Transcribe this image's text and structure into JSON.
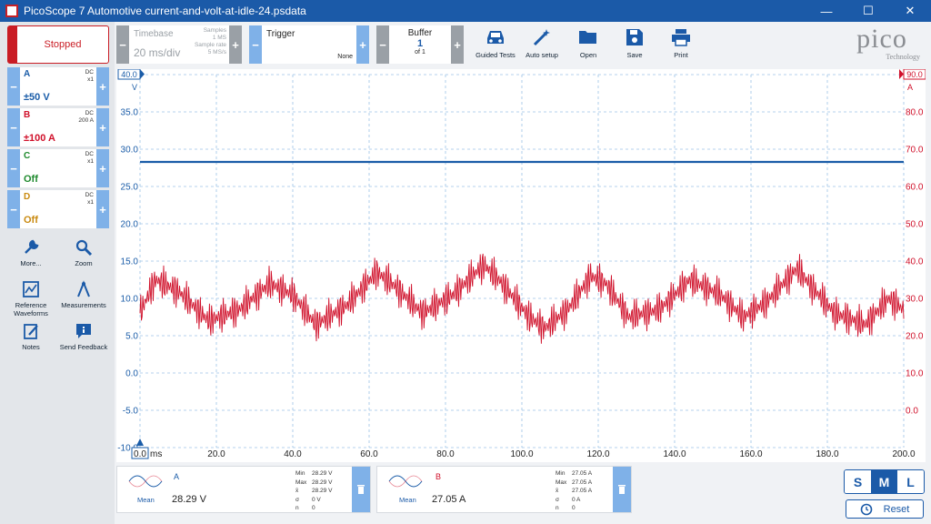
{
  "window": {
    "title": "PicoScope 7 Automotive current-and-volt-at-idle-24.psdata",
    "minimize": "—",
    "maximize": "☐",
    "close": "✕"
  },
  "run": {
    "label": "Stopped"
  },
  "channels": [
    {
      "name": "A",
      "coupling": "DC",
      "probe": "x1",
      "range": "±50 V",
      "color": "#1a5ca8"
    },
    {
      "name": "B",
      "coupling": "DC",
      "probe": "200 A",
      "range": "±100 A",
      "color": "#d0102a"
    },
    {
      "name": "C",
      "coupling": "DC",
      "probe": "x1",
      "range": "Off",
      "color": "#1f8a2e"
    },
    {
      "name": "D",
      "coupling": "DC",
      "probe": "x1",
      "range": "Off",
      "color": "#c98a10"
    }
  ],
  "side_tools": [
    {
      "label": "More...",
      "icon": "wrench-icon"
    },
    {
      "label": "Zoom",
      "icon": "magnifier-icon"
    },
    {
      "label": "Reference Waveforms",
      "icon": "reference-waveforms-icon"
    },
    {
      "label": "Measurements",
      "icon": "measurements-icon"
    },
    {
      "label": "Notes",
      "icon": "notes-icon"
    },
    {
      "label": "Send Feedback",
      "icon": "feedback-icon"
    }
  ],
  "timebase": {
    "label": "Timebase",
    "value": "20 ms/div",
    "samples_label": "Samples",
    "samples_value": "1 MS",
    "rate_label": "Sample rate",
    "rate_value": "5 MS/s"
  },
  "trigger": {
    "label": "Trigger",
    "value": "None"
  },
  "buffer": {
    "label": "Buffer",
    "value": "1",
    "of": "of 1"
  },
  "toolbar_buttons": [
    {
      "label": "Guided Tests",
      "icon": "car-icon"
    },
    {
      "label": "Auto setup",
      "icon": "magic-wand-icon"
    },
    {
      "label": "Open",
      "icon": "folder-icon"
    },
    {
      "label": "Save",
      "icon": "save-icon"
    },
    {
      "label": "Print",
      "icon": "printer-icon"
    }
  ],
  "logo": {
    "word": "pico",
    "sub": "Technology"
  },
  "scope": {
    "left_top_marker": "40.0",
    "left_unit": "V",
    "right_top_marker": "90.0",
    "right_unit": "A",
    "left_ticks": [
      "35.0",
      "30.0",
      "25.0",
      "20.0",
      "15.0",
      "10.0",
      "5.0",
      "0.0",
      "-5.0",
      "-10.0"
    ],
    "right_ticks": [
      "80.0",
      "70.0",
      "60.0",
      "50.0",
      "40.0",
      "30.0",
      "20.0",
      "10.0",
      "0.0"
    ],
    "x_first": "0.0",
    "x_unit": "ms",
    "x_ticks": [
      "20.0",
      "40.0",
      "60.0",
      "80.0",
      "100.0",
      "120.0",
      "140.0",
      "160.0",
      "180.0",
      "200.0"
    ]
  },
  "chart_data": {
    "type": "line",
    "x_range_ms": [
      0,
      200
    ],
    "left_axis": {
      "unit": "V",
      "ylim": [
        -10,
        40
      ]
    },
    "right_axis": {
      "unit": "A",
      "ylim": [
        -10,
        90
      ]
    },
    "grid": true,
    "series": [
      {
        "name": "A",
        "axis": "left",
        "color": "#1a5ca8",
        "mean": 28.29,
        "x": [
          0,
          50,
          100,
          150,
          200
        ],
        "y": [
          28.29,
          28.29,
          28.29,
          28.29,
          28.29
        ]
      },
      {
        "name": "B",
        "axis": "right",
        "color": "#d0102a",
        "mean": 27.05,
        "x": [
          0,
          4,
          10,
          18,
          26,
          34,
          40,
          46,
          54,
          62,
          66,
          74,
          82,
          90,
          94,
          102,
          106,
          112,
          118,
          122,
          128,
          136,
          144,
          152,
          158,
          164,
          172,
          176,
          182,
          190,
          196,
          200
        ],
        "y": [
          26,
          35,
          32,
          24,
          27,
          34,
          31,
          23,
          28,
          37,
          34,
          26,
          31,
          39,
          35,
          25,
          22,
          27,
          36,
          34,
          25,
          27,
          35,
          31,
          25,
          29,
          38,
          33,
          26,
          23,
          30,
          27
        ]
      }
    ]
  },
  "measurements": [
    {
      "channel": "A",
      "mean_label": "Mean",
      "mean": "28.29 V",
      "min_label": "Min",
      "min": "28.29 V",
      "max_label": "Max",
      "max": "28.29 V",
      "avg_label": "x̄",
      "avg": "28.29 V",
      "sd_label": "σ",
      "sd": "0 V",
      "n_label": "n",
      "n": "0"
    },
    {
      "channel": "B",
      "mean_label": "Mean",
      "mean": "27.05 A",
      "min_label": "Min",
      "min": "27.05 A",
      "max_label": "Max",
      "max": "27.05 A",
      "avg_label": "x̄",
      "avg": "27.05 A",
      "sd_label": "σ",
      "sd": "0 A",
      "n_label": "n",
      "n": "0"
    }
  ],
  "size_buttons": {
    "s": "S",
    "m": "M",
    "l": "L",
    "active": "M"
  },
  "reset": {
    "label": "Reset"
  }
}
